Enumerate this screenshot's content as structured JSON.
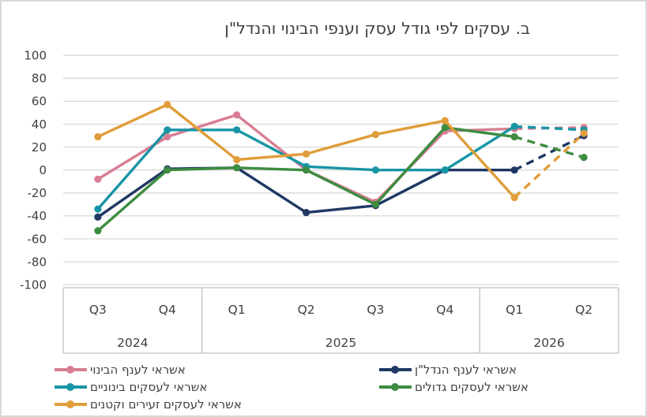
{
  "figure": {
    "title": "ב. עסקים לפי גודל עסק וענפי הבינוי והנדל\"ן"
  },
  "chart_data": {
    "type": "line",
    "title": "ב. עסקים לפי גודל עסק וענפי הבינוי והנדל\"ן",
    "categories": [
      "Q3",
      "Q4",
      "Q1",
      "Q2",
      "Q3",
      "Q4",
      "Q1",
      "Q2"
    ],
    "year_groups": [
      {
        "label": "2024",
        "span": 2
      },
      {
        "label": "2025",
        "span": 4
      },
      {
        "label": "2026",
        "span": 2
      }
    ],
    "ylim": [
      -100,
      100
    ],
    "ytick_step": 20,
    "grid": true,
    "legend_position": "bottom",
    "forecast_from_index": 6,
    "series": [
      {
        "name": "אשראי לענף הבינוי",
        "color": "#d97d92",
        "values": [
          -8,
          29,
          48,
          0,
          -28,
          34,
          36,
          37
        ]
      },
      {
        "name": "אשראי לענף הנדל\"ן",
        "color": "#1f3864",
        "values": [
          -41,
          1,
          2,
          -37,
          -31,
          0,
          0,
          30
        ]
      },
      {
        "name": "אשראי לעסקים בינוניים",
        "color": "#1895a5",
        "values": [
          -34,
          35,
          35,
          3,
          0,
          0,
          38,
          35
        ]
      },
      {
        "name": "אשראי לעסקים גדולים",
        "color": "#3d8c40",
        "values": [
          -53,
          0,
          2,
          0,
          -30,
          37,
          29,
          11
        ]
      },
      {
        "name": "אשראי לעסקים זעירים וקטנים",
        "color": "#e09d39",
        "values": [
          29,
          57,
          9,
          14,
          31,
          43,
          -24,
          32
        ]
      }
    ],
    "legend_columns": [
      [
        0,
        2,
        4
      ],
      [
        1,
        3
      ]
    ]
  },
  "colors": {
    "grid": "#d9d9d9",
    "axis_band_line": "#bfbfbf",
    "text": "#404040",
    "border": "#d9d9d9",
    "background": "#ffffff"
  }
}
